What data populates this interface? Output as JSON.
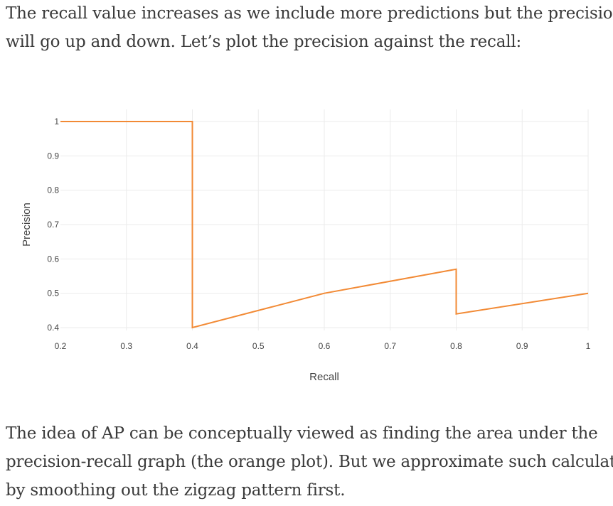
{
  "intro_text": {
    "line1": "The recall value increases as we include more predictions but the precision",
    "line2": "will go up and down. Let’s plot the precision against the recall:"
  },
  "outro_text": {
    "line1": "The idea of AP can be conceptually viewed as finding the area under the",
    "line2": "precision-recall graph (the orange plot). But we approximate such calculation",
    "line3": "by smoothing out the zigzag pattern first."
  },
  "chart_data": {
    "type": "line",
    "title": "",
    "xlabel": "Recall",
    "ylabel": "Precision",
    "xlim": [
      0.2,
      1.0
    ],
    "ylim": [
      0.4,
      1.0
    ],
    "x_ticks": [
      "0.2",
      "0.3",
      "0.4",
      "0.5",
      "0.6",
      "0.7",
      "0.8",
      "0.9",
      "1"
    ],
    "y_ticks": [
      "0.4",
      "0.5",
      "0.6",
      "0.7",
      "0.8",
      "0.9",
      "1"
    ],
    "grid": true,
    "series": [
      {
        "color": "#f28a35",
        "x": [
          0.2,
          0.4,
          0.4,
          0.6,
          0.8,
          0.8,
          1.0
        ],
        "y": [
          1.0,
          1.0,
          0.4,
          0.5,
          0.57,
          0.44,
          0.5
        ]
      }
    ]
  }
}
